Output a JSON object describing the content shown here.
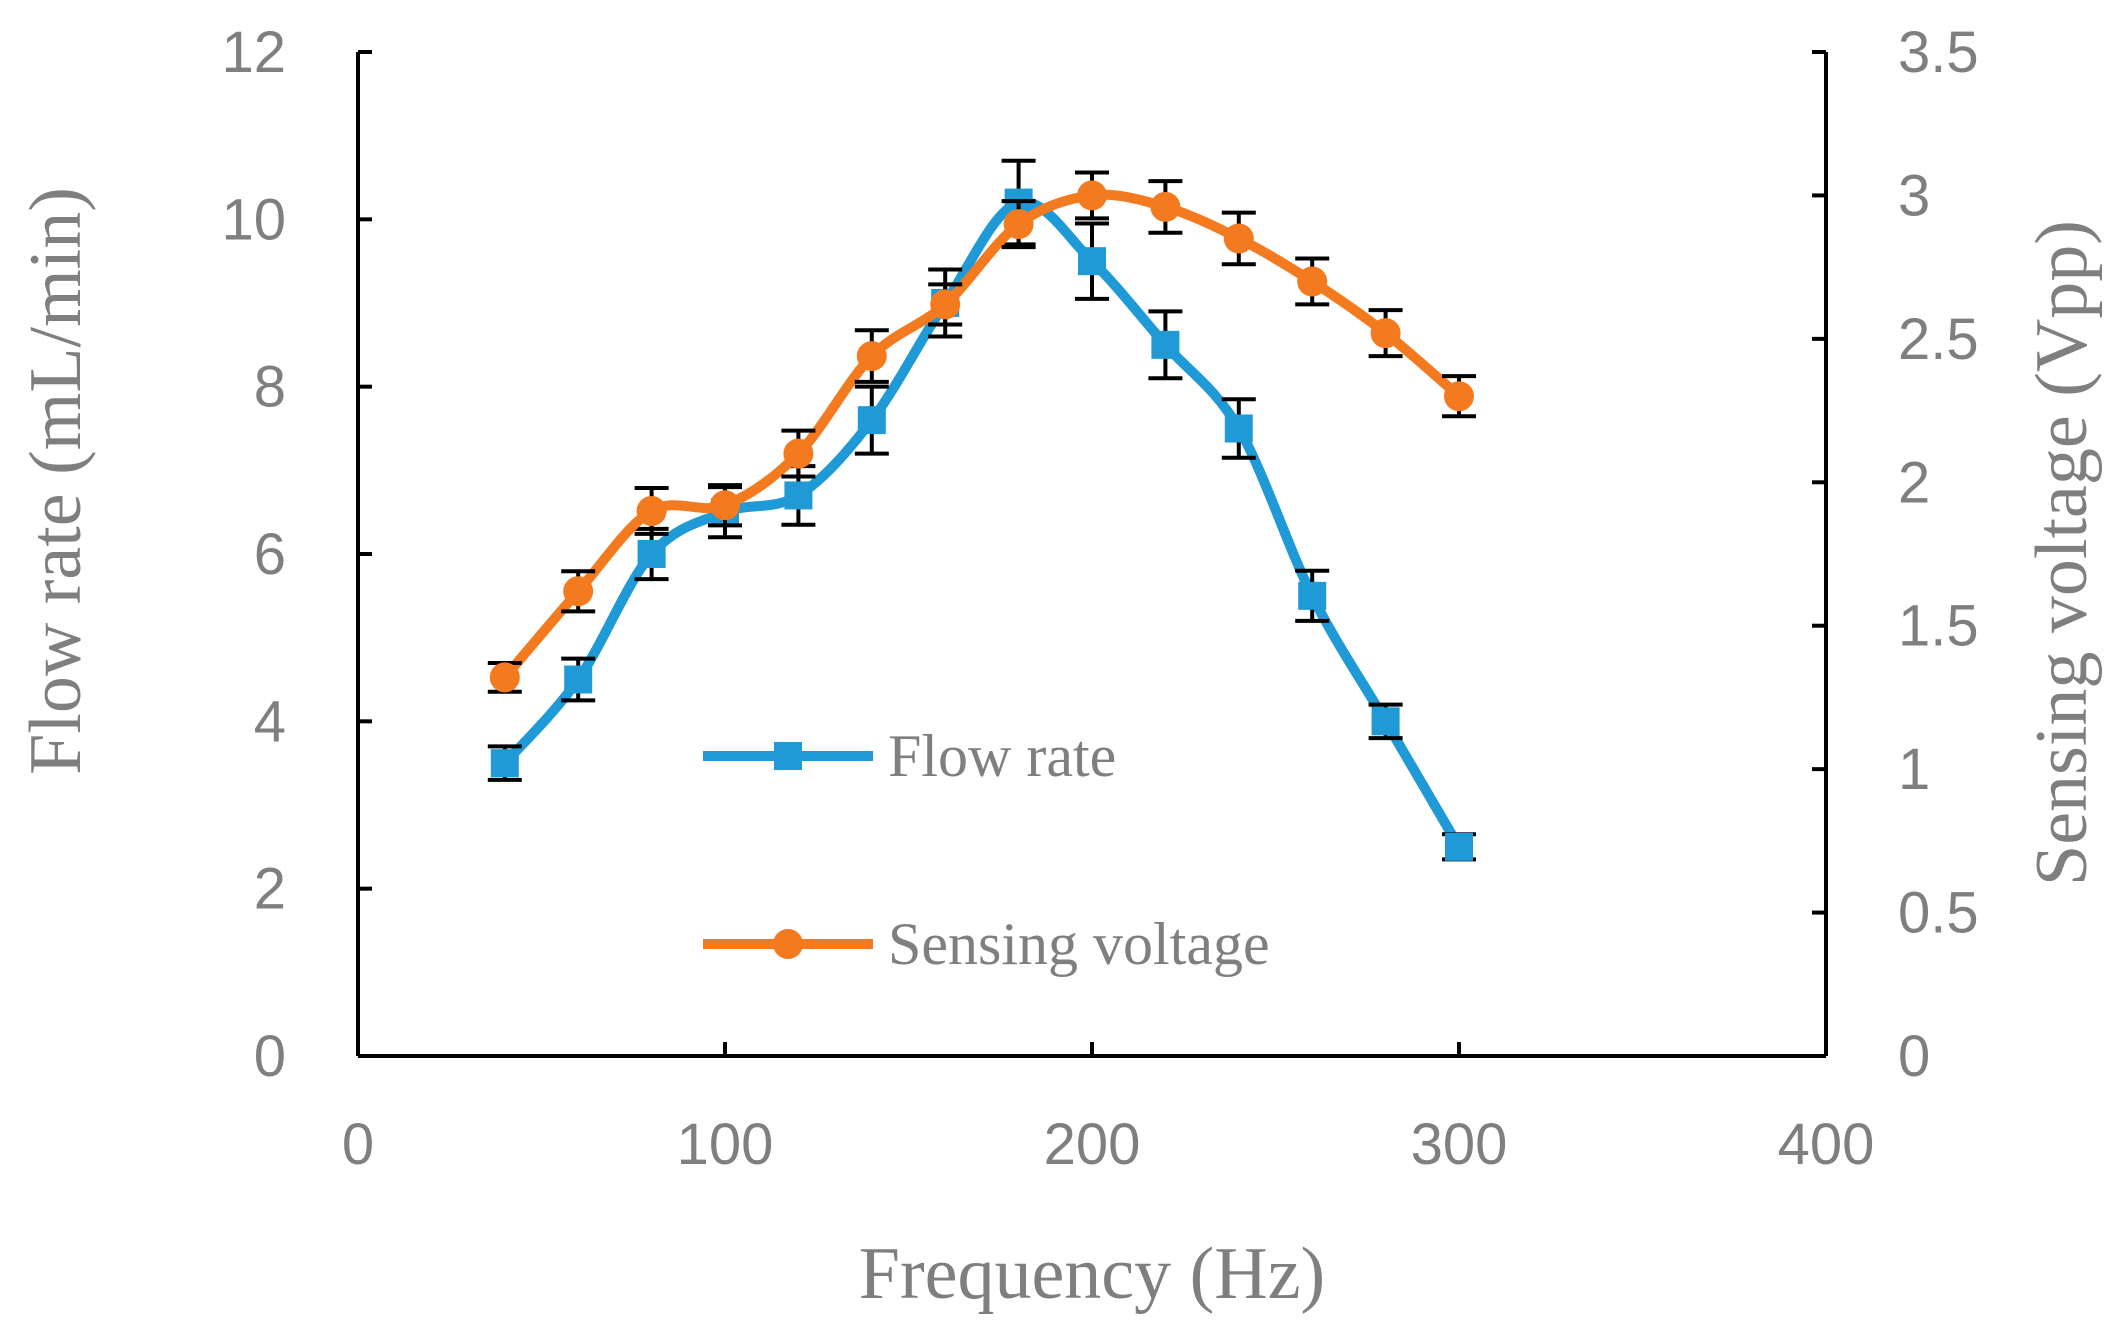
{
  "chart_data": {
    "type": "line",
    "xlabel": "Frequency (Hz)",
    "ylabel": "Flow rate (mL/min)",
    "y2label": "Sensing voltage (Vpp)",
    "xlim": [
      0,
      400
    ],
    "ylim": [
      0,
      12
    ],
    "y2lim": [
      0,
      3.5
    ],
    "x_ticks": [
      "0",
      "100",
      "200",
      "300",
      "400"
    ],
    "y_ticks": [
      "0",
      "2",
      "4",
      "6",
      "8",
      "10",
      "12"
    ],
    "y2_ticks": [
      "0",
      "0.5",
      "1",
      "1.5",
      "2",
      "2.5",
      "3",
      "3.5"
    ],
    "grid": false,
    "legend_position": "center",
    "series": [
      {
        "name": "Flow rate",
        "axis": "left",
        "marker": "square",
        "color": "#1f9ad6",
        "x": [
          40,
          60,
          80,
          100,
          120,
          140,
          160,
          180,
          200,
          220,
          240,
          260,
          280,
          300
        ],
        "values": [
          3.5,
          4.5,
          6.0,
          6.5,
          6.7,
          7.6,
          9.0,
          10.2,
          9.5,
          8.5,
          7.5,
          5.5,
          4.0,
          2.5
        ],
        "error": [
          0.2,
          0.25,
          0.3,
          0.3,
          0.35,
          0.4,
          0.4,
          0.5,
          0.45,
          0.4,
          0.35,
          0.3,
          0.2,
          0.15
        ]
      },
      {
        "name": "Sensing voltage",
        "axis": "right",
        "marker": "circle",
        "color": "#f47a20",
        "x": [
          40,
          60,
          80,
          100,
          120,
          140,
          160,
          180,
          200,
          220,
          240,
          260,
          280,
          300
        ],
        "values": [
          1.32,
          1.62,
          1.9,
          1.92,
          2.1,
          2.44,
          2.62,
          2.9,
          3.0,
          2.96,
          2.85,
          2.7,
          2.52,
          2.3
        ],
        "error": [
          0.05,
          0.07,
          0.08,
          0.07,
          0.08,
          0.09,
          0.07,
          0.08,
          0.08,
          0.09,
          0.09,
          0.08,
          0.08,
          0.07
        ]
      }
    ]
  }
}
